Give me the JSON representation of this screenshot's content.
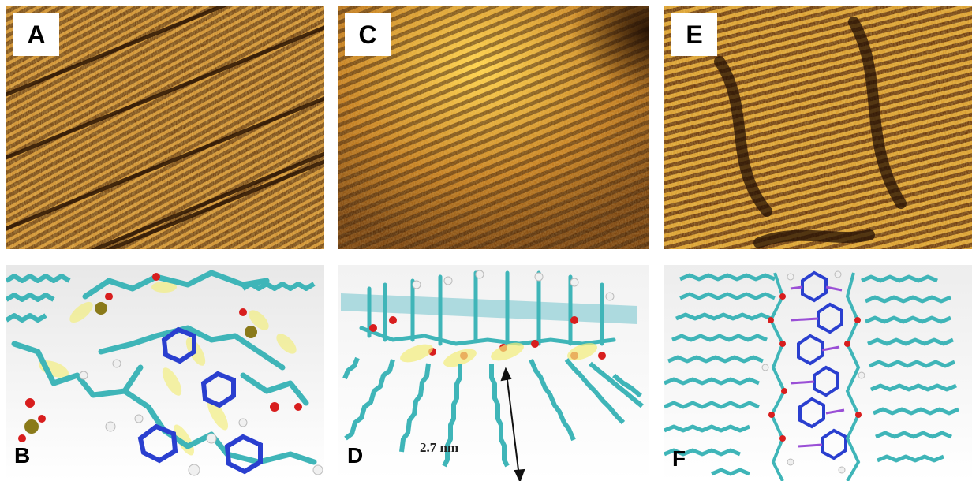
{
  "panels": {
    "A": {
      "label": "A",
      "kind": "stm-image"
    },
    "B": {
      "label": "B",
      "kind": "molecular-model"
    },
    "C": {
      "label": "C",
      "kind": "stm-image"
    },
    "D": {
      "label": "D",
      "kind": "molecular-model",
      "measurement": "2.7 nm"
    },
    "E": {
      "label": "E",
      "kind": "stm-image"
    },
    "F": {
      "label": "F",
      "kind": "molecular-model"
    }
  },
  "colors": {
    "stm_dark": "#5a2e08",
    "stm_mid": "#b8741c",
    "stm_bright": "#f2c23a",
    "carbon": "#3fb5b8",
    "nitrogen": "#2a3fcf",
    "oxygen": "#d81e1e",
    "hydrogen": "#f0f0f0",
    "phosphorus": "#8a7a1a",
    "hbond_highlight": "#f3ee7a"
  }
}
